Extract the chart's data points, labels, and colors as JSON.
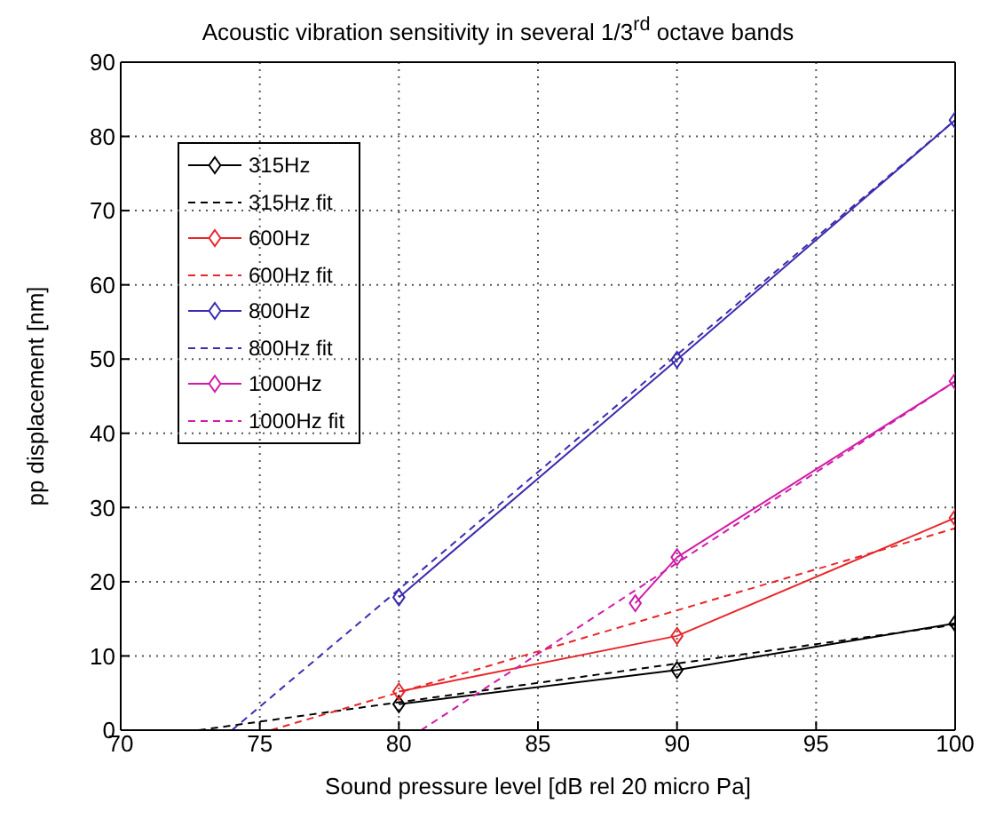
{
  "chart_data": {
    "type": "line",
    "title": "Acoustic vibration sensitivity in several 1/3$^{rd}$ octave bands",
    "xlabel": "Sound pressure level [dB rel 20 micro Pa]",
    "ylabel": "pp displacement [nm]",
    "xlim": [
      70,
      100
    ],
    "xticks": [
      70,
      75,
      80,
      85,
      90,
      95,
      100
    ],
    "ylim": [
      0,
      90
    ],
    "yticks": [
      0,
      10,
      20,
      30,
      40,
      50,
      60,
      70,
      80,
      90
    ],
    "grid": true,
    "legend": "top left",
    "series": [
      {
        "name": "315Hz",
        "color": "#000000",
        "x": [
          80,
          90,
          100
        ],
        "values": [
          3.5,
          8.1,
          14.4
        ],
        "marker": "diamond",
        "line_style": "solid"
      },
      {
        "name": "315Hz fit",
        "color": "#000000",
        "x": [
          72.8,
          100
        ],
        "values": [
          0,
          14.2
        ],
        "marker": "none",
        "line_style": "dashed"
      },
      {
        "name": "600Hz",
        "color": "#e8262b",
        "x": [
          80,
          90,
          100
        ],
        "values": [
          5.2,
          12.7,
          28.6
        ],
        "marker": "diamond",
        "line_style": "solid"
      },
      {
        "name": "600Hz fit",
        "color": "#e8262b",
        "x": [
          75.4,
          100
        ],
        "values": [
          0,
          27.2
        ],
        "marker": "none",
        "line_style": "dashed"
      },
      {
        "name": "800Hz",
        "color": "#3b2bb0",
        "x": [
          80,
          90,
          100
        ],
        "values": [
          17.9,
          49.9,
          82.2
        ],
        "marker": "diamond",
        "line_style": "solid"
      },
      {
        "name": "800Hz fit",
        "color": "#3b2bb0",
        "x": [
          74,
          100
        ],
        "values": [
          0,
          82.2
        ],
        "marker": "none",
        "line_style": "dashed"
      },
      {
        "name": "1000Hz",
        "color": "#d11ba8",
        "x": [
          88.5,
          90,
          100
        ],
        "values": [
          17.1,
          23.3,
          47
        ],
        "marker": "diamond",
        "line_style": "solid"
      },
      {
        "name": "1000Hz fit",
        "color": "#d11ba8",
        "x": [
          80.8,
          100
        ],
        "values": [
          0,
          47
        ],
        "marker": "none",
        "line_style": "dashed"
      }
    ]
  }
}
